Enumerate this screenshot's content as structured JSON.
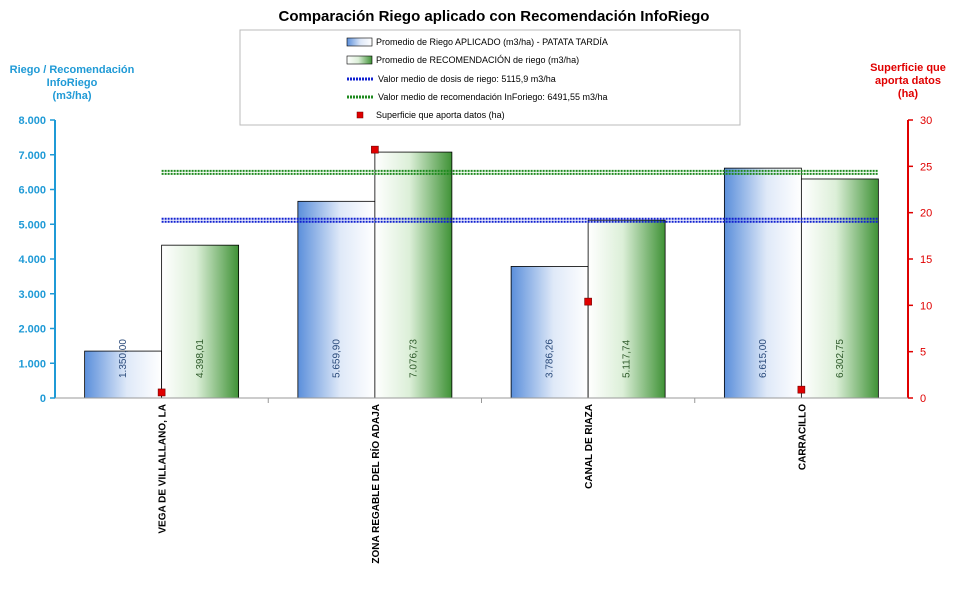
{
  "chart_data": {
    "type": "bar",
    "title": "Comparación Riego aplicado con Recomendación InfoRiego",
    "ylabel_left": [
      "Riego / Recomendación",
      "InfoRiego",
      "(m3/ha)"
    ],
    "ylabel_right": [
      "Superficie que",
      "aporta datos",
      "(ha)"
    ],
    "categories": [
      "VEGA DE VILLALLANO, LA",
      "ZONA REGABLE DEL RÍO ADAJA",
      "CANAL DE RIAZA",
      "CARRACILLO"
    ],
    "ylim_left": [
      0,
      8000
    ],
    "yticks_left": [
      "0",
      "1.000",
      "2.000",
      "3.000",
      "4.000",
      "5.000",
      "6.000",
      "7.000",
      "8.000"
    ],
    "ylim_right": [
      0,
      30
    ],
    "yticks_right": [
      "0",
      "5",
      "10",
      "15",
      "20",
      "25",
      "30"
    ],
    "series": [
      {
        "name": "Promedio de Riego APLICADO (m3/ha) - PATATA TARDÍA",
        "values": [
          1350.0,
          5659.9,
          3786.26,
          6615.0
        ],
        "labels": [
          "1.350,00",
          "5.659,90",
          "3.786,26",
          "6.615,00"
        ],
        "color": "#6f9fe0"
      },
      {
        "name": "Promedio de RECOMENDACIÓN de riego (m3/ha)",
        "values": [
          4398.01,
          7076.73,
          5117.74,
          6302.75
        ],
        "labels": [
          "4.398,01",
          "7.076,73",
          "5.117,74",
          "6.302,75"
        ],
        "color": "#4a9a3e"
      }
    ],
    "lines": [
      {
        "name": "Valor medio de dosis de riego: 5115,9 m3/ha",
        "value": 5115.9,
        "color": "#1020d0"
      },
      {
        "name": "Valor medio de recomendación InForiego: 6491,55 m3/ha",
        "value": 6491.55,
        "color": "#1e8a1e"
      }
    ],
    "markers": {
      "name": "Superficie que aporta datos (ha)",
      "values": [
        0.6,
        26.8,
        10.4,
        0.9
      ],
      "color": "#e00000"
    },
    "legend": "top-center",
    "grid": false
  }
}
